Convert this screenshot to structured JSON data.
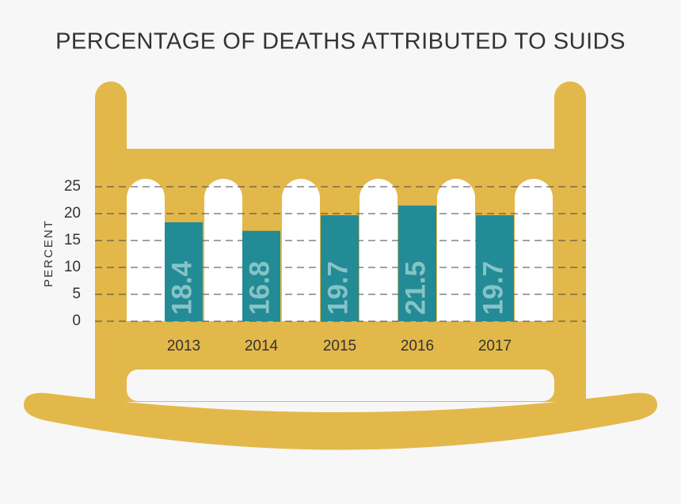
{
  "chart_data": {
    "type": "bar",
    "title": "PERCENTAGE OF DEATHS ATTRIBUTED TO SUIDS",
    "y_label": "PERCENT",
    "categories": [
      "2013",
      "2014",
      "2015",
      "2016",
      "2017"
    ],
    "values": [
      18.4,
      16.8,
      19.7,
      21.5,
      19.7
    ],
    "color": "#238b96",
    "ylim": [
      0,
      25
    ],
    "yticks": [
      0,
      5,
      10,
      15,
      20,
      25
    ],
    "grid": true
  }
}
